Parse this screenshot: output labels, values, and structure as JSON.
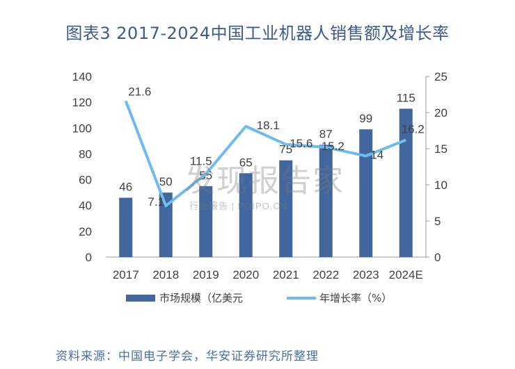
{
  "title": "图表3 2017-2024中国工业机器人销售额及增长率",
  "source": "资料来源：中国电子学会，华安证券研究所整理",
  "watermark": {
    "main": "发现报告家",
    "sub": "行业报告 | POIPO.CN"
  },
  "colors": {
    "bar": "#41679e",
    "line": "#6dbbf0",
    "title": "#3c5a8c",
    "axis": "#9a9a9a",
    "text": "#404040"
  },
  "chart_data": {
    "type": "bar",
    "categories": [
      "2017",
      "2018",
      "2019",
      "2020",
      "2021",
      "2022",
      "2023",
      "2024E"
    ],
    "series": [
      {
        "name": "市场规模（亿美元",
        "type": "bar",
        "axis": "left",
        "values": [
          46,
          50,
          55,
          65,
          75,
          87,
          99,
          115
        ],
        "labels": [
          "46",
          "50",
          "55",
          "65",
          "75",
          "87",
          "99",
          "115"
        ]
      },
      {
        "name": "年增长率（%",
        "type": "line",
        "axis": "right",
        "values": [
          21.6,
          7.1,
          11.5,
          18.1,
          15.6,
          15.2,
          14,
          16.2
        ],
        "labels": [
          "21.6",
          "7.1",
          "11.5",
          "18.1",
          "15.6",
          "15.2",
          "14",
          "16.2"
        ]
      }
    ],
    "y_left": {
      "min": 0,
      "max": 140,
      "ticks": [
        "0",
        "20",
        "40",
        "60",
        "80",
        "100",
        "120",
        "140"
      ]
    },
    "y_right": {
      "min": 0,
      "max": 25,
      "ticks": [
        "0",
        "5",
        "10",
        "15",
        "20",
        "25"
      ]
    },
    "legend": {
      "position": "bottom",
      "items": [
        "市场规模（亿美元",
        "年增长率（%）"
      ]
    }
  }
}
